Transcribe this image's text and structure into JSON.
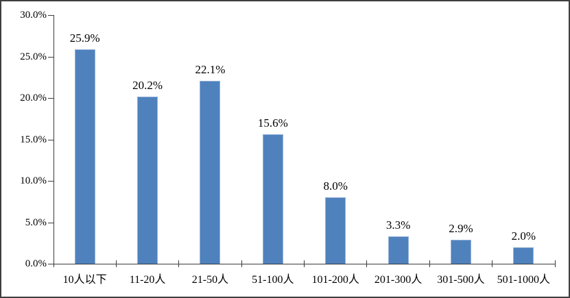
{
  "chart_data": {
    "type": "bar",
    "title": "",
    "xlabel": "",
    "ylabel": "",
    "categories": [
      "10人以下",
      "11-20人",
      "21-50人",
      "51-100人",
      "101-200人",
      "201-300人",
      "301-500人",
      "501-1000人"
    ],
    "values": [
      25.9,
      20.2,
      22.1,
      15.6,
      8.0,
      3.3,
      2.9,
      2.0
    ],
    "value_labels": [
      "25.9%",
      "20.2%",
      "22.1%",
      "15.6%",
      "8.0%",
      "3.3%",
      "2.9%",
      "2.0%"
    ],
    "y_tick_labels": [
      "30.0%",
      "25.0%",
      "20.0%",
      "15.0%",
      "10.0%",
      "5.0%",
      "0.0%"
    ],
    "ylim": [
      0,
      30
    ],
    "y_tick_step": 5,
    "grid": false,
    "legend_position": "none",
    "bar_color": "#4f81bd",
    "bar_edge_color": "#95b3d7",
    "axis_color": "#3a3a3a",
    "text_color": "#000000",
    "frame_color": "#3f3f3f",
    "background_color": "#ffffff"
  }
}
